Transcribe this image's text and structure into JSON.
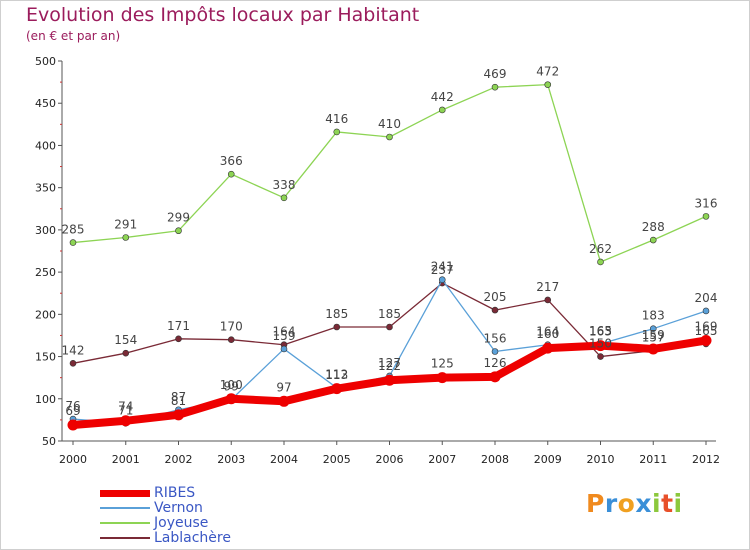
{
  "header": {
    "title": "Evolution des Impôts locaux par Habitant",
    "subtitle": "(en € et par an)"
  },
  "colors": {
    "title": "#9b1c5c",
    "ribes": "#ee0000",
    "vernon": "#5aa0d8",
    "joyeuse": "#8dd454",
    "lablachere": "#7a2a36",
    "legend_text": "#3a57c4"
  },
  "logo": {
    "letters": [
      "P",
      "r",
      "o",
      "x",
      "i",
      "t",
      "i"
    ],
    "colors": [
      "#f08a1e",
      "#3a8fd8",
      "#f0a020",
      "#3a8fd8",
      "#8cc83c",
      "#e8502a",
      "#8cc83c"
    ]
  },
  "chart_data": {
    "type": "line",
    "title": "Evolution des Impôts locaux par Habitant",
    "subtitle": "(en € et par an)",
    "x": [
      "2000",
      "2001",
      "2002",
      "2003",
      "2004",
      "2005",
      "2006",
      "2007",
      "2008",
      "2009",
      "2010",
      "2011",
      "2012"
    ],
    "ylim": [
      50,
      500
    ],
    "yticks": [
      50,
      100,
      150,
      200,
      250,
      300,
      350,
      400,
      450,
      500
    ],
    "grid": false,
    "legend_position": "bottom-left",
    "series": [
      {
        "name": "RIBES",
        "key": "ribes",
        "values": [
          69,
          74,
          81,
          100,
          97,
          112,
          122,
          125,
          126,
          160,
          163,
          159,
          169
        ],
        "labels_below": true
      },
      {
        "name": "Vernon",
        "key": "vernon",
        "values": [
          76,
          71,
          87,
          99,
          159,
          113,
          127,
          241,
          156,
          164,
          165,
          183,
          204
        ],
        "labels_below": false
      },
      {
        "name": "Joyeuse",
        "key": "joyeuse",
        "values": [
          285,
          291,
          299,
          366,
          338,
          416,
          410,
          442,
          469,
          472,
          262,
          288,
          316
        ],
        "labels_below": false
      },
      {
        "name": "Lablachère",
        "key": "lablachere",
        "values": [
          142,
          154,
          171,
          170,
          164,
          185,
          185,
          237,
          205,
          217,
          150,
          157,
          165
        ],
        "labels_below": false
      }
    ]
  },
  "legend": [
    {
      "name": "RIBES",
      "key": "ribes"
    },
    {
      "name": "Vernon",
      "key": "vernon"
    },
    {
      "name": "Joyeuse",
      "key": "joyeuse"
    },
    {
      "name": "Lablachère",
      "key": "lablachere"
    }
  ]
}
